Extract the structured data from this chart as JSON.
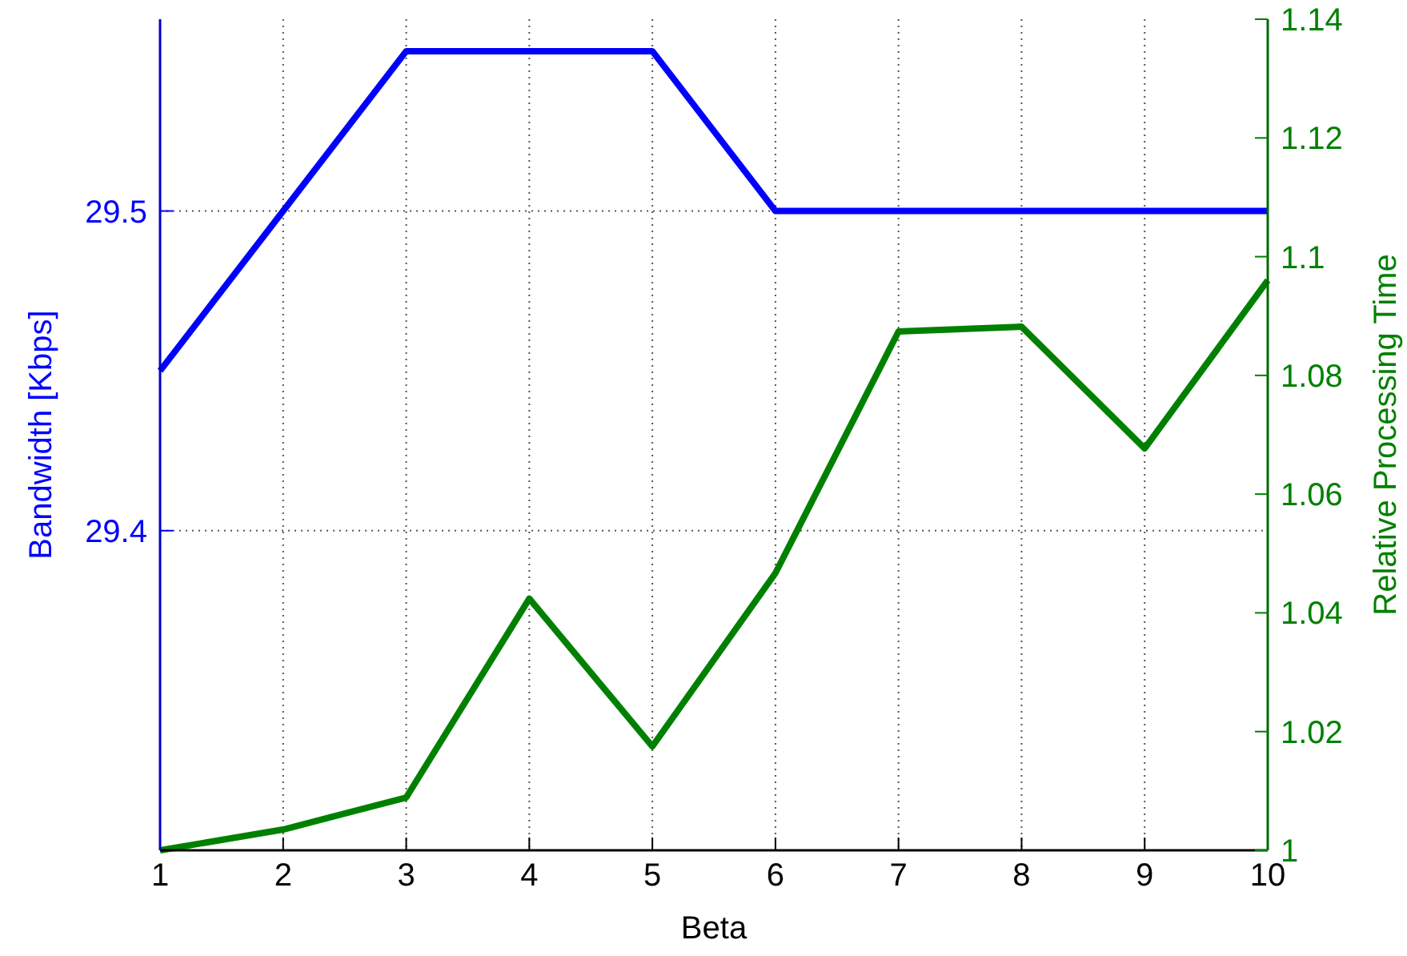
{
  "chart_data": {
    "type": "line",
    "xlabel": "Beta",
    "ylabel": "Bandwidth [Kbps]",
    "y2label": "Relative Processing Time",
    "x": [
      1,
      2,
      3,
      4,
      5,
      6,
      7,
      8,
      9,
      10
    ],
    "xlim": [
      1,
      10
    ],
    "xticks": [
      1,
      2,
      3,
      4,
      5,
      6,
      7,
      8,
      9,
      10
    ],
    "ylim": [
      29.3,
      29.56
    ],
    "yticks": [
      29.4,
      29.5
    ],
    "y2lim": [
      1,
      1.14
    ],
    "y2ticks": [
      1,
      1.02,
      1.04,
      1.06,
      1.08,
      1.1,
      1.12,
      1.14
    ],
    "grid": true,
    "line_style": "solid",
    "marker": "none",
    "series": [
      {
        "color": "#0000ff",
        "values": [
          29.45,
          29.5,
          29.55,
          29.55,
          29.55,
          29.5,
          29.5,
          29.5,
          29.5,
          29.5
        ]
      },
      {
        "color": "#008000",
        "axis": "y2",
        "values": [
          1.0,
          1.0035,
          1.0089,
          1.0424,
          1.0175,
          1.0467,
          1.0874,
          1.0882,
          1.0677,
          1.096
        ]
      }
    ]
  }
}
